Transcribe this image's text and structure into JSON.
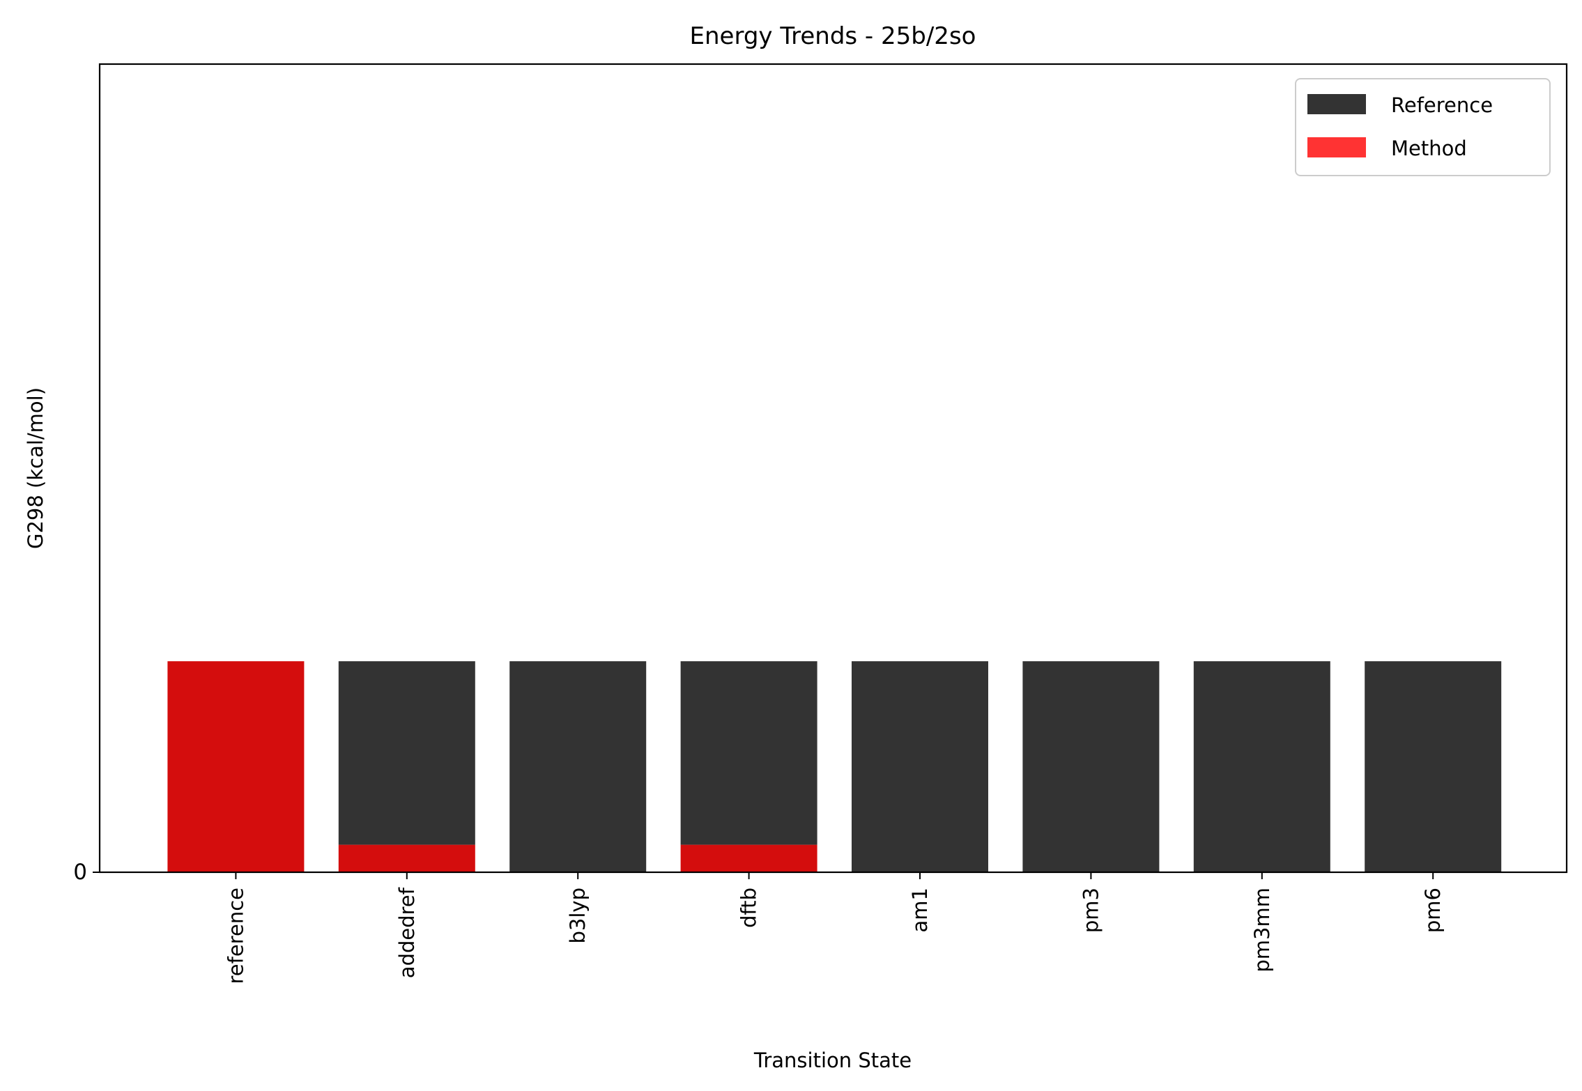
{
  "chart_data": {
    "type": "bar",
    "title": "Energy Trends - 25b/2so",
    "xlabel": "Transition State",
    "ylabel": "G298 (kcal/mol)",
    "categories": [
      "reference",
      "addedref",
      "b3lyp",
      "dftb",
      "am1",
      "pm3",
      "pm3mm",
      "pm6"
    ],
    "series": [
      {
        "name": "Reference",
        "color": "#333333",
        "values": [
          1.0,
          1.0,
          1.0,
          1.0,
          1.0,
          1.0,
          1.0,
          1.0
        ]
      },
      {
        "name": "Method",
        "color": "#ff3333",
        "values": [
          1.0,
          0.13,
          0,
          0.13,
          0,
          0,
          0,
          0
        ]
      }
    ],
    "overlap_color": "#d40d0d",
    "yticks": [
      "0"
    ],
    "ylim": [
      0,
      3.83
    ],
    "legend_position": "top-right",
    "grid": false
  }
}
